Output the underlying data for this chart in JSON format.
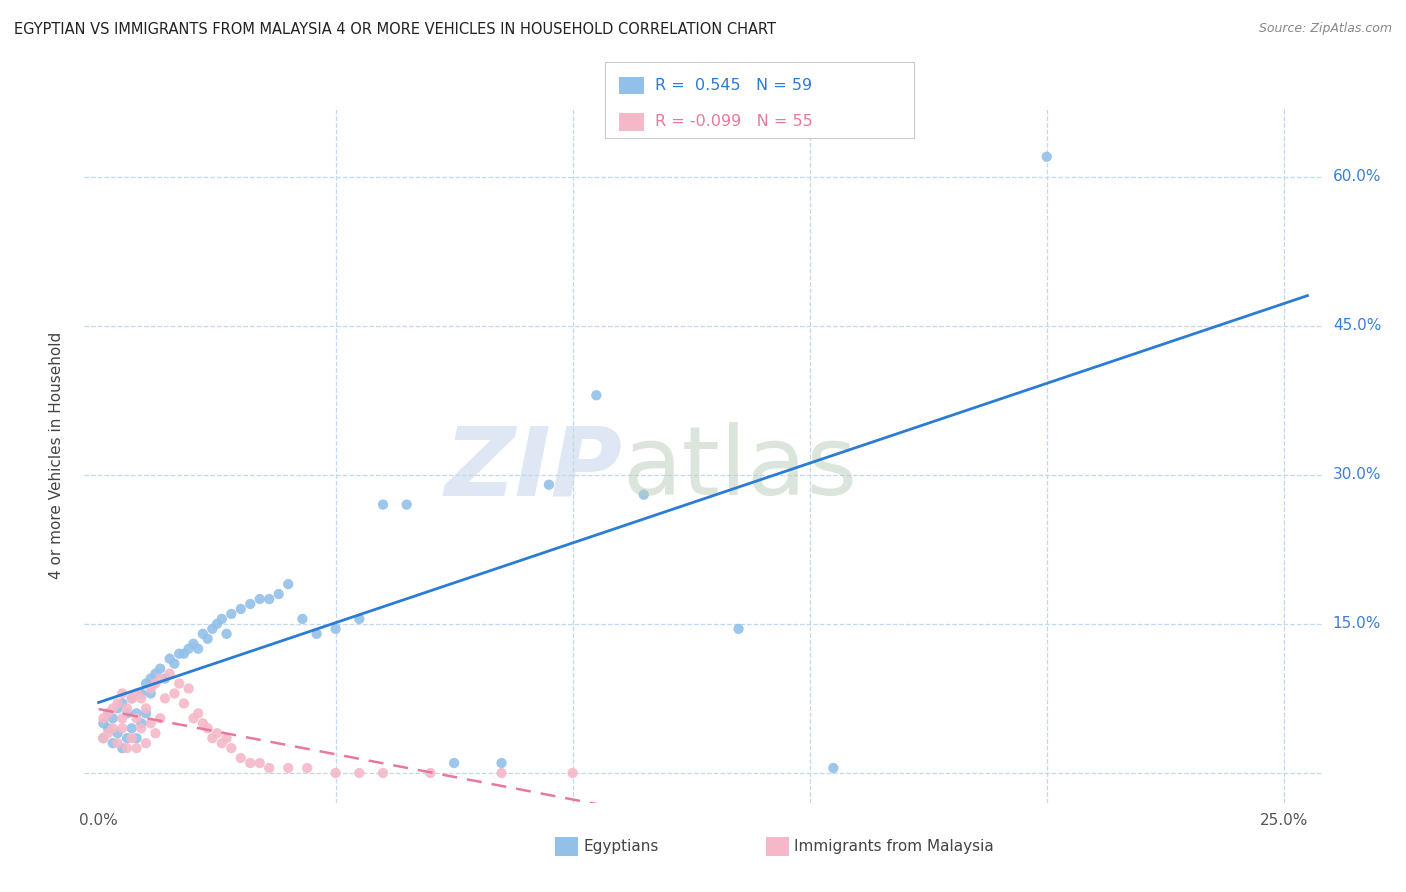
{
  "title": "EGYPTIAN VS IMMIGRANTS FROM MALAYSIA 4 OR MORE VEHICLES IN HOUSEHOLD CORRELATION CHART",
  "source": "Source: ZipAtlas.com",
  "ylabel": "4 or more Vehicles in Household",
  "xlim": [
    -0.003,
    0.258
  ],
  "ylim": [
    -0.03,
    0.67
  ],
  "xtick_positions": [
    0.0,
    0.05,
    0.1,
    0.15,
    0.2,
    0.25
  ],
  "xticklabels": [
    "0.0%",
    "",
    "",
    "",
    "",
    "25.0%"
  ],
  "ytick_positions": [
    0.0,
    0.15,
    0.3,
    0.45,
    0.6
  ],
  "yticklabels": [
    "",
    "15.0%",
    "30.0%",
    "45.0%",
    "60.0%"
  ],
  "egyptian_color": "#92C0E8",
  "malaysia_color": "#F5B8C8",
  "egyptian_line_color": "#2B7CD3",
  "malaysia_line_color": "#E8799A",
  "R_egyptian": 0.545,
  "N_egyptian": 59,
  "R_malaysia": -0.099,
  "N_malaysia": 55,
  "watermark_zip": "ZIP",
  "watermark_atlas": "atlas",
  "legend_labels": [
    "Egyptians",
    "Immigrants from Malaysia"
  ],
  "eg_x": [
    0.001,
    0.001,
    0.002,
    0.002,
    0.003,
    0.003,
    0.004,
    0.004,
    0.005,
    0.005,
    0.006,
    0.006,
    0.007,
    0.007,
    0.008,
    0.008,
    0.009,
    0.009,
    0.01,
    0.01,
    0.011,
    0.011,
    0.012,
    0.013,
    0.014,
    0.015,
    0.016,
    0.017,
    0.018,
    0.019,
    0.02,
    0.021,
    0.022,
    0.023,
    0.024,
    0.025,
    0.026,
    0.027,
    0.028,
    0.03,
    0.032,
    0.034,
    0.036,
    0.038,
    0.04,
    0.043,
    0.046,
    0.05,
    0.055,
    0.06,
    0.065,
    0.075,
    0.085,
    0.095,
    0.105,
    0.115,
    0.135,
    0.155,
    0.2
  ],
  "eg_y": [
    0.05,
    0.035,
    0.045,
    0.06,
    0.03,
    0.055,
    0.04,
    0.065,
    0.025,
    0.07,
    0.035,
    0.06,
    0.045,
    0.075,
    0.035,
    0.06,
    0.05,
    0.08,
    0.06,
    0.09,
    0.095,
    0.08,
    0.1,
    0.105,
    0.095,
    0.115,
    0.11,
    0.12,
    0.12,
    0.125,
    0.13,
    0.125,
    0.14,
    0.135,
    0.145,
    0.15,
    0.155,
    0.14,
    0.16,
    0.165,
    0.17,
    0.175,
    0.175,
    0.18,
    0.19,
    0.155,
    0.14,
    0.145,
    0.155,
    0.27,
    0.27,
    0.01,
    0.01,
    0.29,
    0.38,
    0.28,
    0.145,
    0.005,
    0.62
  ],
  "my_x": [
    0.001,
    0.001,
    0.002,
    0.002,
    0.003,
    0.003,
    0.004,
    0.004,
    0.005,
    0.005,
    0.005,
    0.006,
    0.006,
    0.007,
    0.007,
    0.008,
    0.008,
    0.008,
    0.009,
    0.009,
    0.01,
    0.01,
    0.011,
    0.011,
    0.012,
    0.012,
    0.013,
    0.013,
    0.014,
    0.015,
    0.016,
    0.017,
    0.018,
    0.019,
    0.02,
    0.021,
    0.022,
    0.023,
    0.024,
    0.025,
    0.026,
    0.027,
    0.028,
    0.03,
    0.032,
    0.034,
    0.036,
    0.04,
    0.044,
    0.05,
    0.055,
    0.06,
    0.07,
    0.085,
    0.1
  ],
  "my_y": [
    0.055,
    0.035,
    0.06,
    0.04,
    0.045,
    0.065,
    0.03,
    0.07,
    0.045,
    0.055,
    0.08,
    0.025,
    0.065,
    0.035,
    0.075,
    0.025,
    0.055,
    0.08,
    0.045,
    0.075,
    0.03,
    0.065,
    0.05,
    0.085,
    0.04,
    0.09,
    0.055,
    0.095,
    0.075,
    0.1,
    0.08,
    0.09,
    0.07,
    0.085,
    0.055,
    0.06,
    0.05,
    0.045,
    0.035,
    0.04,
    0.03,
    0.035,
    0.025,
    0.015,
    0.01,
    0.01,
    0.005,
    0.005,
    0.005,
    0.0,
    0.0,
    0.0,
    0.0,
    0.0,
    0.0
  ]
}
